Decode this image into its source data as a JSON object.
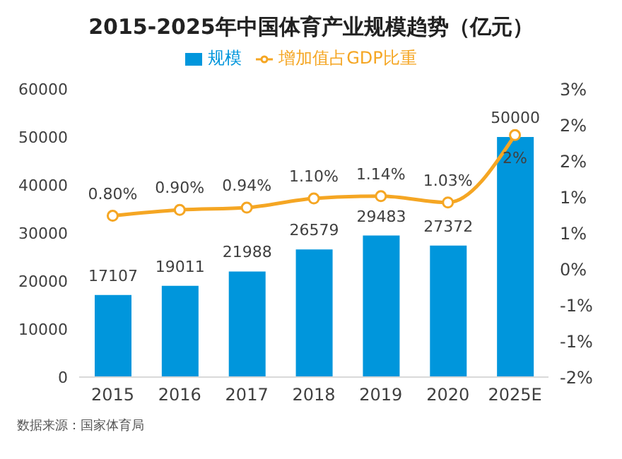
{
  "chart_data": {
    "type": "bar",
    "title": "2015-2025年中国体育产业规模趋势（亿元）",
    "categories": [
      "2015",
      "2016",
      "2017",
      "2018",
      "2019",
      "2020",
      "2025E"
    ],
    "series": [
      {
        "name": "规模",
        "color": "#0096dc",
        "values": [
          17107,
          19011,
          21988,
          26579,
          29483,
          27372,
          50000
        ],
        "value_labels": [
          "17107",
          "19011",
          "21988",
          "26579",
          "29483",
          "27372",
          "50000"
        ]
      },
      {
        "name": "增加值占GDP比重",
        "type": "line",
        "axis": "y2",
        "color": "#f5a623",
        "marker": "circle",
        "values": [
          0.8,
          0.9,
          0.94,
          1.1,
          1.14,
          1.03,
          2.2
        ],
        "value_labels": [
          "0.80%",
          "0.90%",
          "0.94%",
          "1.10%",
          "1.14%",
          "1.03%",
          "2%"
        ]
      }
    ],
    "ylim": [
      0,
      60000
    ],
    "yticks": [
      0,
      10000,
      20000,
      30000,
      40000,
      50000,
      60000
    ],
    "y2lim": [
      -2,
      3
    ],
    "y2ticks": [
      {
        "value": -2,
        "label": "-2%"
      },
      {
        "value": -1.375,
        "label": "-1%"
      },
      {
        "value": -0.75,
        "label": "-1%"
      },
      {
        "value": -0.125,
        "label": "0%"
      },
      {
        "value": 0.5,
        "label": "1%"
      },
      {
        "value": 1.125,
        "label": "1%"
      },
      {
        "value": 1.75,
        "label": "2%"
      },
      {
        "value": 2.375,
        "label": "2%"
      },
      {
        "value": 3,
        "label": "3%"
      }
    ],
    "legend": "top",
    "annotations": [
      "数据来源：国家体育局"
    ]
  }
}
